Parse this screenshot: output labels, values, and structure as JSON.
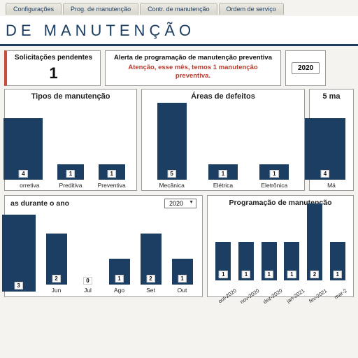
{
  "tabs": [
    "Configurações",
    "Prog. de manutenção",
    "Contr. de manutenção",
    "Ordem de serviço"
  ],
  "page_title": "DE MANUTENÇÃO",
  "pending": {
    "title": "Solicitações pendentes",
    "value": "1"
  },
  "alert": {
    "title": "Alerta de programação de manutenção preventiva",
    "message": "Atenção, esse mês, temos 1 manutenção preventiva."
  },
  "year_button": "2020",
  "chart_colors": {
    "bar": "#1d3e63",
    "bg": "#ffffff"
  },
  "chart_tipos": {
    "title": "Tipos de manutenção",
    "max": 5,
    "items": [
      {
        "label": "orretiva",
        "value": 4,
        "cut": true
      },
      {
        "label": "Preditiva",
        "value": 1
      },
      {
        "label": "Preventiva",
        "value": 1
      }
    ]
  },
  "chart_areas": {
    "title": "Áreas de defeitos",
    "max": 5,
    "items": [
      {
        "label": "Mecânica",
        "value": 5
      },
      {
        "label": "Elétrica",
        "value": 1
      },
      {
        "label": "Eletrônica",
        "value": 1
      }
    ]
  },
  "chart_top5": {
    "title": "5 ma",
    "max": 5,
    "items": [
      {
        "label": "Má",
        "value": 4,
        "cut": true
      }
    ]
  },
  "chart_monthly": {
    "title": "as durante o ano",
    "select": "2020",
    "max": 3,
    "items": [
      {
        "label": "",
        "value": 3,
        "cut": true
      },
      {
        "label": "Jun",
        "value": 2
      },
      {
        "label": "Jul",
        "value": 0
      },
      {
        "label": "Ago",
        "value": 1
      },
      {
        "label": "Set",
        "value": 2
      },
      {
        "label": "Out",
        "value": 1
      }
    ]
  },
  "chart_prog": {
    "title": "Programação de manutenção",
    "max": 2,
    "items": [
      {
        "label": "out-2020",
        "value": 1
      },
      {
        "label": "nov-2020",
        "value": 1
      },
      {
        "label": "dez-2020",
        "value": 1
      },
      {
        "label": "jan-2021",
        "value": 1
      },
      {
        "label": "fev-2021",
        "value": 2
      },
      {
        "label": "mar-2",
        "value": 1
      }
    ]
  }
}
